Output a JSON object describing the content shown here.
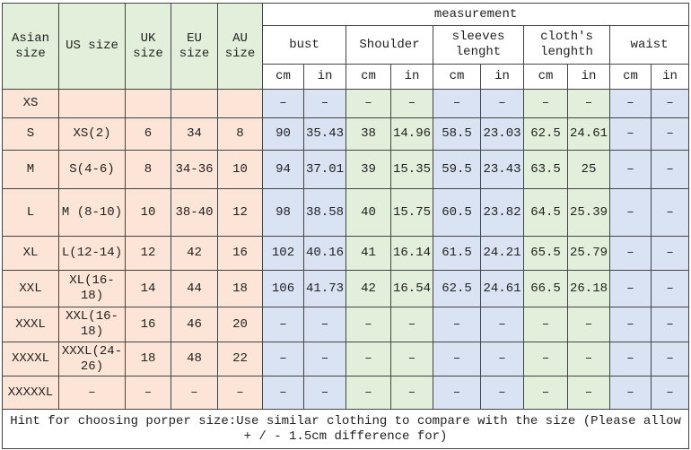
{
  "header": {
    "left": [
      "Asian size",
      "US size",
      "UK size",
      "EU size",
      "AU size"
    ],
    "measurement": "measurement",
    "groups": [
      {
        "name": "bust",
        "units": [
          "cm",
          "in"
        ]
      },
      {
        "name": "Shoulder",
        "units": [
          "cm",
          "in"
        ]
      },
      {
        "name": "sleeves lenght",
        "units": [
          "cm",
          "in"
        ]
      },
      {
        "name": "cloth's lenghth",
        "units": [
          "cm",
          "in"
        ]
      },
      {
        "name": "waist",
        "units": [
          "cm",
          "in"
        ]
      }
    ]
  },
  "table": {
    "rows": [
      [
        "XS",
        null,
        null,
        null,
        null,
        "–",
        "–",
        "–",
        "–",
        "–",
        "–",
        "–",
        "–",
        "–",
        "–"
      ],
      [
        "S",
        "XS(2)",
        "6",
        "34",
        "8",
        "90",
        "35.43",
        "38",
        "14.96",
        "58.5",
        "23.03",
        "62.5",
        "24.61",
        "–",
        "–"
      ],
      [
        "M",
        "S(4-6)",
        "8",
        "34-36",
        "10",
        "94",
        "37.01",
        "39",
        "15.35",
        "59.5",
        "23.43",
        "63.5",
        "25",
        "–",
        "–"
      ],
      [
        "L",
        "M (8-10)",
        "10",
        "38-40",
        "12",
        "98",
        "38.58",
        "40",
        "15.75",
        "60.5",
        "23.82",
        "64.5",
        "25.39",
        "–",
        "–"
      ],
      [
        "XL",
        "L(12-14)",
        "12",
        "42",
        "16",
        "102",
        "40.16",
        "41",
        "16.14",
        "61.5",
        "24.21",
        "65.5",
        "25.79",
        "–",
        "–"
      ],
      [
        "XXL",
        "XL(16-18)",
        "14",
        "44",
        "18",
        "106",
        "41.73",
        "42",
        "16.54",
        "62.5",
        "24.61",
        "66.5",
        "26.18",
        "–",
        "–"
      ],
      [
        "XXXL",
        "XXL(16-18)",
        "16",
        "46",
        "20",
        "–",
        "–",
        "–",
        "–",
        "–",
        "–",
        "–",
        "–",
        "–",
        "–"
      ],
      [
        "XXXXL",
        "XXXL(24-26)",
        "18",
        "48",
        "22",
        "–",
        "–",
        "–",
        "–",
        "–",
        "–",
        "–",
        "–",
        "–",
        "–"
      ],
      [
        "XXXXXL",
        "–",
        "–",
        "–",
        "–",
        "–",
        "–",
        "–",
        "–",
        "–",
        "–",
        "–",
        "–",
        "–",
        "–"
      ]
    ]
  },
  "hint": "Hint for choosing porper size:Use similar clothing to compare with the size (Please allow + / - 1.5cm difference for)"
}
